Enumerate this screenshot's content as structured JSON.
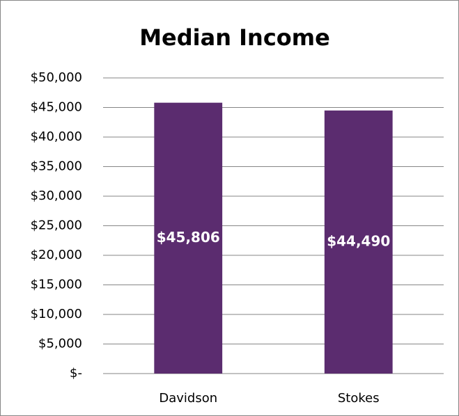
{
  "chart_data": {
    "type": "bar",
    "title": "Median Income",
    "categories": [
      "Davidson",
      "Stokes"
    ],
    "values": [
      45806,
      44490
    ],
    "value_labels": [
      "$45,806",
      "$44,490"
    ],
    "color": "#5b2c6f",
    "ylim": [
      0,
      50000
    ],
    "yticks": [
      {
        "value": 0,
        "label": "$-"
      },
      {
        "value": 5000,
        "label": "$5,000"
      },
      {
        "value": 10000,
        "label": "$10,000"
      },
      {
        "value": 15000,
        "label": "$15,000"
      },
      {
        "value": 20000,
        "label": "$20,000"
      },
      {
        "value": 25000,
        "label": "$25,000"
      },
      {
        "value": 30000,
        "label": "$30,000"
      },
      {
        "value": 35000,
        "label": "$35,000"
      },
      {
        "value": 40000,
        "label": "$40,000"
      },
      {
        "value": 45000,
        "label": "$45,000"
      },
      {
        "value": 50000,
        "label": "$50,000"
      }
    ],
    "grid": true
  }
}
